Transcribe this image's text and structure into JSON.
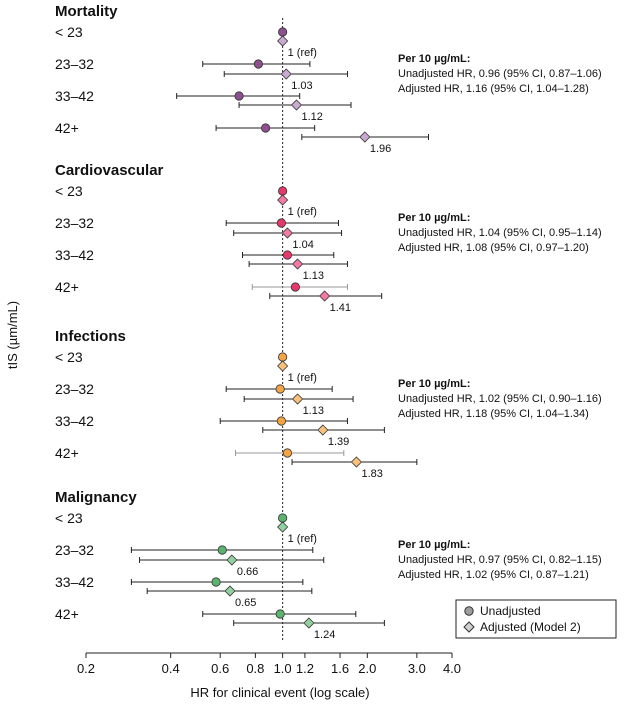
{
  "chart_data": {
    "type": "scatter",
    "subtype": "forest-plot",
    "xlabel": "HR for clinical event (log scale)",
    "ylabel": "tIS (µm/mL)",
    "x_scale": "log",
    "xlim": [
      0.2,
      4.0
    ],
    "x_ticks": [
      0.2,
      0.4,
      0.6,
      0.8,
      1.0,
      1.2,
      1.6,
      2.0,
      3.0,
      4.0
    ],
    "x_tick_labels": [
      "0.2",
      "0.4",
      "0.6",
      "0.8",
      "1.0",
      "1.2",
      "1.6",
      "2.0",
      "3.0",
      "4.0"
    ],
    "reference_line": 1.0,
    "grid": false,
    "legend": {
      "placement": "bottom-right",
      "entries": [
        "Unadjusted",
        "Adjusted (Model 2)"
      ]
    },
    "categories": [
      "< 23",
      "23–32",
      "33–42",
      "42+"
    ],
    "panels": [
      {
        "title": "Mortality",
        "color": "#8e4f8e",
        "adj_color": "#c9a9cf",
        "unadjusted": [
          {
            "hr": 1.0,
            "lo": null,
            "hi": null
          },
          {
            "hr": 0.82,
            "lo": 0.52,
            "hi": 1.25
          },
          {
            "hr": 0.7,
            "lo": 0.42,
            "hi": 1.15
          },
          {
            "hr": 0.87,
            "lo": 0.58,
            "hi": 1.3
          }
        ],
        "adjusted": [
          {
            "hr": 1.0,
            "lo": null,
            "hi": null,
            "label": "1 (ref)"
          },
          {
            "hr": 1.03,
            "lo": 0.62,
            "hi": 1.7,
            "label": "1.03"
          },
          {
            "hr": 1.12,
            "lo": 0.7,
            "hi": 1.75,
            "label": "1.12"
          },
          {
            "hr": 1.96,
            "lo": 1.17,
            "hi": 3.3,
            "label": "1.96"
          }
        ],
        "annotation": {
          "heading": "Per 10 µg/mL:",
          "unadjusted": "Unadjusted HR, 0.96 (95% CI, 0.87–1.06)",
          "adjusted": "Adjusted HR, 1.16 (95% CI, 1.04–1.28)"
        }
      },
      {
        "title": "Cardiovascular",
        "color": "#e6396b",
        "adj_color": "#f27ba3",
        "unadjusted": [
          {
            "hr": 1.0,
            "lo": null,
            "hi": null
          },
          {
            "hr": 0.99,
            "lo": 0.63,
            "hi": 1.58
          },
          {
            "hr": 1.04,
            "lo": 0.72,
            "hi": 1.52
          },
          {
            "hr": 1.11,
            "lo": 0.78,
            "hi": 1.7
          }
        ],
        "adjusted": [
          {
            "hr": 1.0,
            "lo": null,
            "hi": null,
            "label": "1 (ref)"
          },
          {
            "hr": 1.04,
            "lo": 0.67,
            "hi": 1.62,
            "label": "1.04"
          },
          {
            "hr": 1.13,
            "lo": 0.76,
            "hi": 1.7,
            "label": "1.13"
          },
          {
            "hr": 1.41,
            "lo": 0.9,
            "hi": 2.25,
            "label": "1.41"
          }
        ],
        "annotation": {
          "heading": "Per 10 µg/mL:",
          "unadjusted": "Unadjusted HR, 1.04 (95% CI, 0.95–1.14)",
          "adjusted": "Adjusted HR, 1.08 (95% CI, 0.97–1.20)"
        }
      },
      {
        "title": "Infections",
        "color": "#f5a445",
        "adj_color": "#f9c27c",
        "unadjusted": [
          {
            "hr": 1.0,
            "lo": null,
            "hi": null
          },
          {
            "hr": 0.98,
            "lo": 0.63,
            "hi": 1.5
          },
          {
            "hr": 0.99,
            "lo": 0.6,
            "hi": 1.7
          },
          {
            "hr": 1.04,
            "lo": 0.68,
            "hi": 1.65
          }
        ],
        "adjusted": [
          {
            "hr": 1.0,
            "lo": null,
            "hi": null,
            "label": "1 (ref)"
          },
          {
            "hr": 1.13,
            "lo": 0.73,
            "hi": 1.78,
            "label": "1.13"
          },
          {
            "hr": 1.39,
            "lo": 0.85,
            "hi": 2.3,
            "label": "1.39"
          },
          {
            "hr": 1.83,
            "lo": 1.08,
            "hi": 3.0,
            "label": "1.83"
          }
        ],
        "annotation": {
          "heading": "Per 10 µg/mL:",
          "unadjusted": "Unadjusted HR, 1.02 (95% CI, 0.90–1.16)",
          "adjusted": "Adjusted HR, 1.18 (95% CI, 1.04–1.34)"
        }
      },
      {
        "title": "Malignancy",
        "color": "#5bb46e",
        "adj_color": "#93d09f",
        "unadjusted": [
          {
            "hr": 1.0,
            "lo": null,
            "hi": null
          },
          {
            "hr": 0.61,
            "lo": 0.29,
            "hi": 1.28
          },
          {
            "hr": 0.58,
            "lo": 0.29,
            "hi": 1.18
          },
          {
            "hr": 0.98,
            "lo": 0.52,
            "hi": 1.82
          }
        ],
        "adjusted": [
          {
            "hr": 1.0,
            "lo": null,
            "hi": null,
            "label": "1 (ref)"
          },
          {
            "hr": 0.66,
            "lo": 0.31,
            "hi": 1.4,
            "label": "0.66"
          },
          {
            "hr": 0.65,
            "lo": 0.33,
            "hi": 1.27,
            "label": "0.65"
          },
          {
            "hr": 1.24,
            "lo": 0.67,
            "hi": 2.3,
            "label": "1.24"
          }
        ],
        "annotation": {
          "heading": "Per 10 µg/mL:",
          "unadjusted": "Unadjusted HR, 0.97 (95% CI, 0.82–1.15)",
          "adjusted": "Adjusted HR, 1.02 (95% CI, 0.87–1.21)"
        }
      }
    ]
  },
  "colors": {
    "legend_unadjusted": "#9e9e9e",
    "legend_adjusted": "#d0d0d0",
    "ci_line": "#222222",
    "ci_line_light": "#999999"
  }
}
